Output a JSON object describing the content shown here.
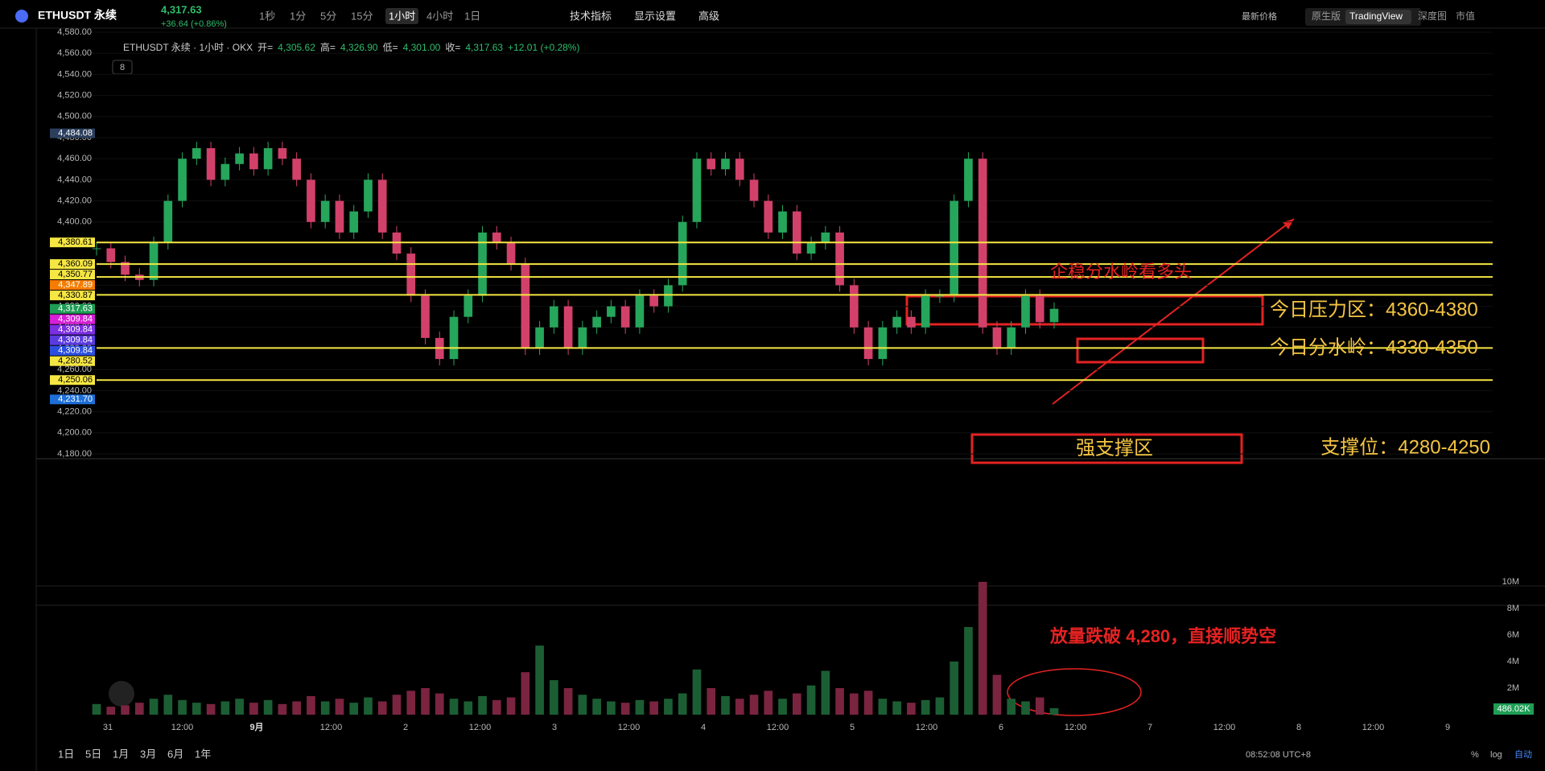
{
  "chart_data": {
    "type": "candlestick",
    "symbol": "ETHUSDT 永续",
    "last_price": "4,317.63",
    "change": "+36.64 (+0.86%)",
    "intervals": [
      "1秒",
      "1分",
      "5分",
      "15分",
      "1小时",
      "4小时",
      "1日"
    ],
    "toolbar": [
      "技术指标",
      "显示设置",
      "高级"
    ],
    "price_mode": "最新价格",
    "views": [
      "原生版",
      "TradingView",
      "深度图",
      "市值"
    ],
    "legend": {
      "title": "ETHUSDT 永续 · 1小时 · OKX",
      "o_label": "开=",
      "o": "4,305.62",
      "h_label": "高=",
      "h": "4,326.90",
      "l_label": "低=",
      "l": "4,301.00",
      "c_label": "收=",
      "c": "4,317.63",
      "chg": "+12.01 (+0.28%)",
      "count": "8"
    },
    "ylim": [
      4180,
      4580
    ],
    "yticks": [
      {
        "value": 4580,
        "label": "4,580.00"
      },
      {
        "value": 4560,
        "label": "4,560.00"
      },
      {
        "value": 4540,
        "label": "4,540.00"
      },
      {
        "value": 4520,
        "label": "4,520.00"
      },
      {
        "value": 4500,
        "label": "4,500.00"
      },
      {
        "value": 4480,
        "label": "4,480.00"
      },
      {
        "value": 4460,
        "label": "4,460.00"
      },
      {
        "value": 4440,
        "label": "4,440.00"
      },
      {
        "value": 4420,
        "label": "4,420.00"
      },
      {
        "value": 4400,
        "label": "4,400.00"
      },
      {
        "value": 4380,
        "label": "4,380.00"
      },
      {
        "value": 4360,
        "label": "4,360.00"
      },
      {
        "value": 4340,
        "label": "4,340.00"
      },
      {
        "value": 4320,
        "label": "4,320.00"
      },
      {
        "value": 4300,
        "label": "4,300.00"
      },
      {
        "value": 4280,
        "label": "4,280.00"
      },
      {
        "value": 4260,
        "label": "4,260.00"
      },
      {
        "value": 4240,
        "label": "4,240.00"
      },
      {
        "value": 4220,
        "label": "4,220.00"
      },
      {
        "value": 4200,
        "label": "4,200.00"
      },
      {
        "value": 4180,
        "label": "4,180.00"
      }
    ],
    "price_tags": [
      {
        "value": 4484.08,
        "label": "4,484.08",
        "color": "#2b3e5c"
      },
      {
        "value": 4380.61,
        "label": "4,380.61",
        "color": "#f5e642",
        "line": true
      },
      {
        "value": 4360.09,
        "label": "4,360.09",
        "color": "#f5e642",
        "line": true
      },
      {
        "value": 4350.77,
        "label": "4,350.77",
        "color": "#f5e642"
      },
      {
        "value": 4347.89,
        "label": "4,347.89",
        "color": "#f57c00",
        "line": true
      },
      {
        "value": 4330.87,
        "label": "4,330.87",
        "color": "#f5e642",
        "line": true
      },
      {
        "value": 4317.63,
        "label": "4,317.63",
        "color": "#1f9d55"
      },
      {
        "value": 4309.84,
        "label": "4,309.84",
        "color": "#d61fd6"
      },
      {
        "value": 4309.84,
        "label": "4,309.84",
        "color": "#7b2fe0"
      },
      {
        "value": 4309.84,
        "label": "4,309.84",
        "color": "#5a3be0"
      },
      {
        "value": 4309.84,
        "label": "4,309.84",
        "color": "#2c4fe0"
      },
      {
        "value": 4280.52,
        "label": "4,280.52",
        "color": "#f5e642",
        "line": true
      },
      {
        "value": 4250.06,
        "label": "4,250.06",
        "color": "#f5e642",
        "line": true
      },
      {
        "value": 4231.7,
        "label": "4,231.70",
        "color": "#1e6fd8"
      }
    ],
    "closes": [
      4375,
      4362,
      4350,
      4345,
      4380,
      4420,
      4460,
      4470,
      4440,
      4455,
      4465,
      4450,
      4470,
      4460,
      4440,
      4400,
      4420,
      4390,
      4410,
      4440,
      4390,
      4370,
      4330,
      4290,
      4270,
      4310,
      4330,
      4390,
      4380,
      4360,
      4280,
      4300,
      4320,
      4280,
      4300,
      4310,
      4320,
      4300,
      4330,
      4320,
      4340,
      4400,
      4460,
      4450,
      4460,
      4440,
      4420,
      4390,
      4410,
      4370,
      4380,
      4390,
      4340,
      4300,
      4270,
      4300,
      4310,
      4300,
      4330,
      4330,
      4420,
      4460,
      4300,
      4280,
      4300,
      4330,
      4305,
      4317.63
    ],
    "volumes": [
      0.8,
      0.6,
      0.7,
      0.9,
      1.2,
      1.5,
      1.1,
      0.9,
      0.8,
      1.0,
      1.2,
      0.9,
      1.1,
      0.8,
      1.0,
      1.4,
      1.0,
      1.2,
      0.9,
      1.3,
      1.0,
      1.5,
      1.8,
      2.0,
      1.6,
      1.2,
      1.0,
      1.4,
      1.1,
      1.3,
      3.2,
      5.2,
      2.6,
      2.0,
      1.5,
      1.2,
      1.0,
      0.9,
      1.1,
      1.0,
      1.2,
      1.6,
      3.4,
      2.0,
      1.4,
      1.2,
      1.5,
      1.8,
      1.2,
      1.6,
      2.2,
      3.3,
      2.0,
      1.6,
      1.8,
      1.2,
      1.0,
      0.9,
      1.1,
      1.3,
      4.0,
      6.6,
      10.0,
      3.0,
      1.2,
      1.0,
      1.3,
      0.49
    ],
    "vlim": [
      0,
      10
    ],
    "vticks": [
      {
        "value": 10,
        "label": "10M"
      },
      {
        "value": 8,
        "label": "8M"
      },
      {
        "value": 6,
        "label": "6M"
      },
      {
        "value": 4,
        "label": "4M"
      },
      {
        "value": 2,
        "label": "2M"
      }
    ],
    "volume_tag": "486.02K",
    "xticks": [
      "31",
      "12:00",
      "9月",
      "12:00",
      "2",
      "12:00",
      "3",
      "12:00",
      "4",
      "12:00",
      "5",
      "12:00",
      "6",
      "12:00",
      "7",
      "12:00",
      "8",
      "12:00",
      "9"
    ],
    "annotations": {
      "up": "企稳分水岭看多头",
      "pressure": "今日压力区：4360-4380",
      "pivot": "今日分水岭：4330-4350",
      "support_zone": "强支撑区",
      "support": "支撑位：4280-4250",
      "volume_note": "放量跌破 4,280，直接顺势空"
    },
    "ranges": [
      "1日",
      "5日",
      "1月",
      "3月",
      "6月",
      "1年"
    ],
    "clock": "08:52:08 UTC+8",
    "pct": "%",
    "log": "log",
    "auto": "自动",
    "up_color": "#26a65b",
    "down_color": "#d2416a"
  }
}
